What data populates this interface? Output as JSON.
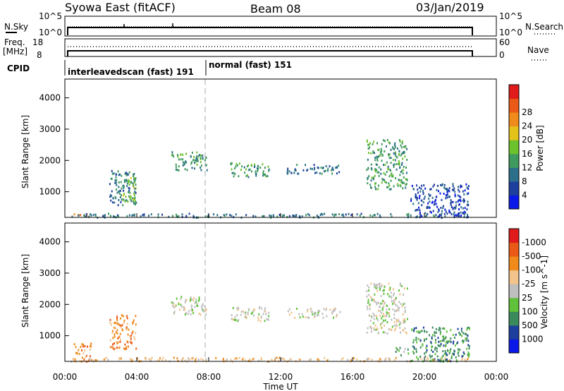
{
  "header": {
    "station": "Syowa East (fitACF)",
    "beam": "Beam 08",
    "date": "03/Jan/2019"
  },
  "noise_panel": {
    "left_label": "N.Sky",
    "right_label": "N.Search",
    "left_ticks": [
      "10^5",
      "10^0"
    ],
    "right_ticks": [
      "10^5",
      "10^0"
    ]
  },
  "freq_panel": {
    "left_label_line1": "Freq.",
    "left_label_line2": "[MHz]",
    "right_label": "Nave",
    "left_ticks": [
      "18",
      "8"
    ],
    "right_ticks": [
      "60",
      "0"
    ]
  },
  "cpid_panel": {
    "label": "CPID",
    "modes": [
      {
        "name": "interleavedscan (fast) 191",
        "start_hour": 0
      },
      {
        "name": "normal (fast) 151",
        "start_hour": 8
      }
    ]
  },
  "chart_data": [
    {
      "type": "heatmap",
      "title": "Power",
      "ylabel": "Slant Range [km]",
      "xlabel": "Time UT",
      "x_range_hours": [
        0,
        24
      ],
      "ylim": [
        180,
        4600
      ],
      "x_ticks": [
        "00:00",
        "04:00",
        "08:00",
        "12:00",
        "16:00",
        "20:00",
        "00:00"
      ],
      "y_ticks": [
        "1000",
        "2000",
        "3000",
        "4000"
      ],
      "colorbar": {
        "label": "Power [dB]",
        "ticks": [
          "4",
          "8",
          "12",
          "16",
          "20",
          "24",
          "28"
        ],
        "colors": [
          "#0a18e8",
          "#1d3f9e",
          "#2c6f8a",
          "#3f9a5e",
          "#6cc22d",
          "#e3c21a",
          "#f08a1a",
          "#ea5a16",
          "#e01b1b"
        ]
      },
      "clusters": [
        {
          "t0": 0.5,
          "t1": 1.5,
          "r0": 200,
          "r1": 320,
          "level": 6
        },
        {
          "t0": 2.5,
          "t1": 4.0,
          "r0": 600,
          "r1": 1700,
          "level": 2
        },
        {
          "t0": 3.2,
          "t1": 4.0,
          "r0": 700,
          "r1": 1500,
          "level": 4
        },
        {
          "t0": 6.0,
          "t1": 8.0,
          "r0": 1700,
          "r1": 2300,
          "level": 3
        },
        {
          "t0": 9.3,
          "t1": 11.5,
          "r0": 1500,
          "r1": 1950,
          "level": 3
        },
        {
          "t0": 12.5,
          "t1": 15.5,
          "r0": 1600,
          "r1": 1900,
          "level": 2
        },
        {
          "t0": 17.0,
          "t1": 19.3,
          "r0": 1100,
          "r1": 2700,
          "level": 3
        },
        {
          "t0": 19.5,
          "t1": 22.8,
          "r0": 200,
          "r1": 1300,
          "level": 1
        },
        {
          "t0": 0.3,
          "t1": 22.8,
          "r0": 200,
          "r1": 330,
          "level": 2
        }
      ]
    },
    {
      "type": "heatmap",
      "title": "Velocity",
      "ylabel": "Slant Range [km]",
      "xlabel": "Time UT",
      "x_range_hours": [
        0,
        24
      ],
      "ylim": [
        180,
        4600
      ],
      "x_ticks": [
        "00:00",
        "04:00",
        "08:00",
        "12:00",
        "16:00",
        "20:00",
        "00:00"
      ],
      "y_ticks": [
        "1000",
        "2000",
        "3000",
        "4000"
      ],
      "colorbar": {
        "label": "Velocity [m s^-1]",
        "ticks": [
          "1000",
          "500",
          "100",
          "25",
          "-25",
          "-100",
          "-500",
          "-1000"
        ],
        "colors": [
          "#0a18e8",
          "#1d3f9e",
          "#3b8a5c",
          "#5fc23a",
          "#bfbfbf",
          "#f2c38a",
          "#f08a1a",
          "#ea5a16",
          "#e01b1b"
        ]
      },
      "clusters": [
        {
          "t0": 0.5,
          "t1": 1.5,
          "r0": 200,
          "r1": 800,
          "level": 6
        },
        {
          "t0": 2.5,
          "t1": 4.0,
          "r0": 600,
          "r1": 1700,
          "level": 6
        },
        {
          "t0": 6.0,
          "t1": 8.0,
          "r0": 1700,
          "r1": 2300,
          "level": 4
        },
        {
          "t0": 9.3,
          "t1": 11.5,
          "r0": 1500,
          "r1": 1950,
          "level": 4
        },
        {
          "t0": 12.5,
          "t1": 15.5,
          "r0": 1600,
          "r1": 1900,
          "level": 4
        },
        {
          "t0": 17.0,
          "t1": 19.3,
          "r0": 1100,
          "r1": 2700,
          "level": 4
        },
        {
          "t0": 18.6,
          "t1": 19.4,
          "r0": 400,
          "r1": 650,
          "level": 3
        },
        {
          "t0": 19.5,
          "t1": 22.8,
          "r0": 200,
          "r1": 1300,
          "level": 2
        },
        {
          "t0": 0.3,
          "t1": 22.8,
          "r0": 200,
          "r1": 330,
          "level": 5
        }
      ]
    }
  ]
}
